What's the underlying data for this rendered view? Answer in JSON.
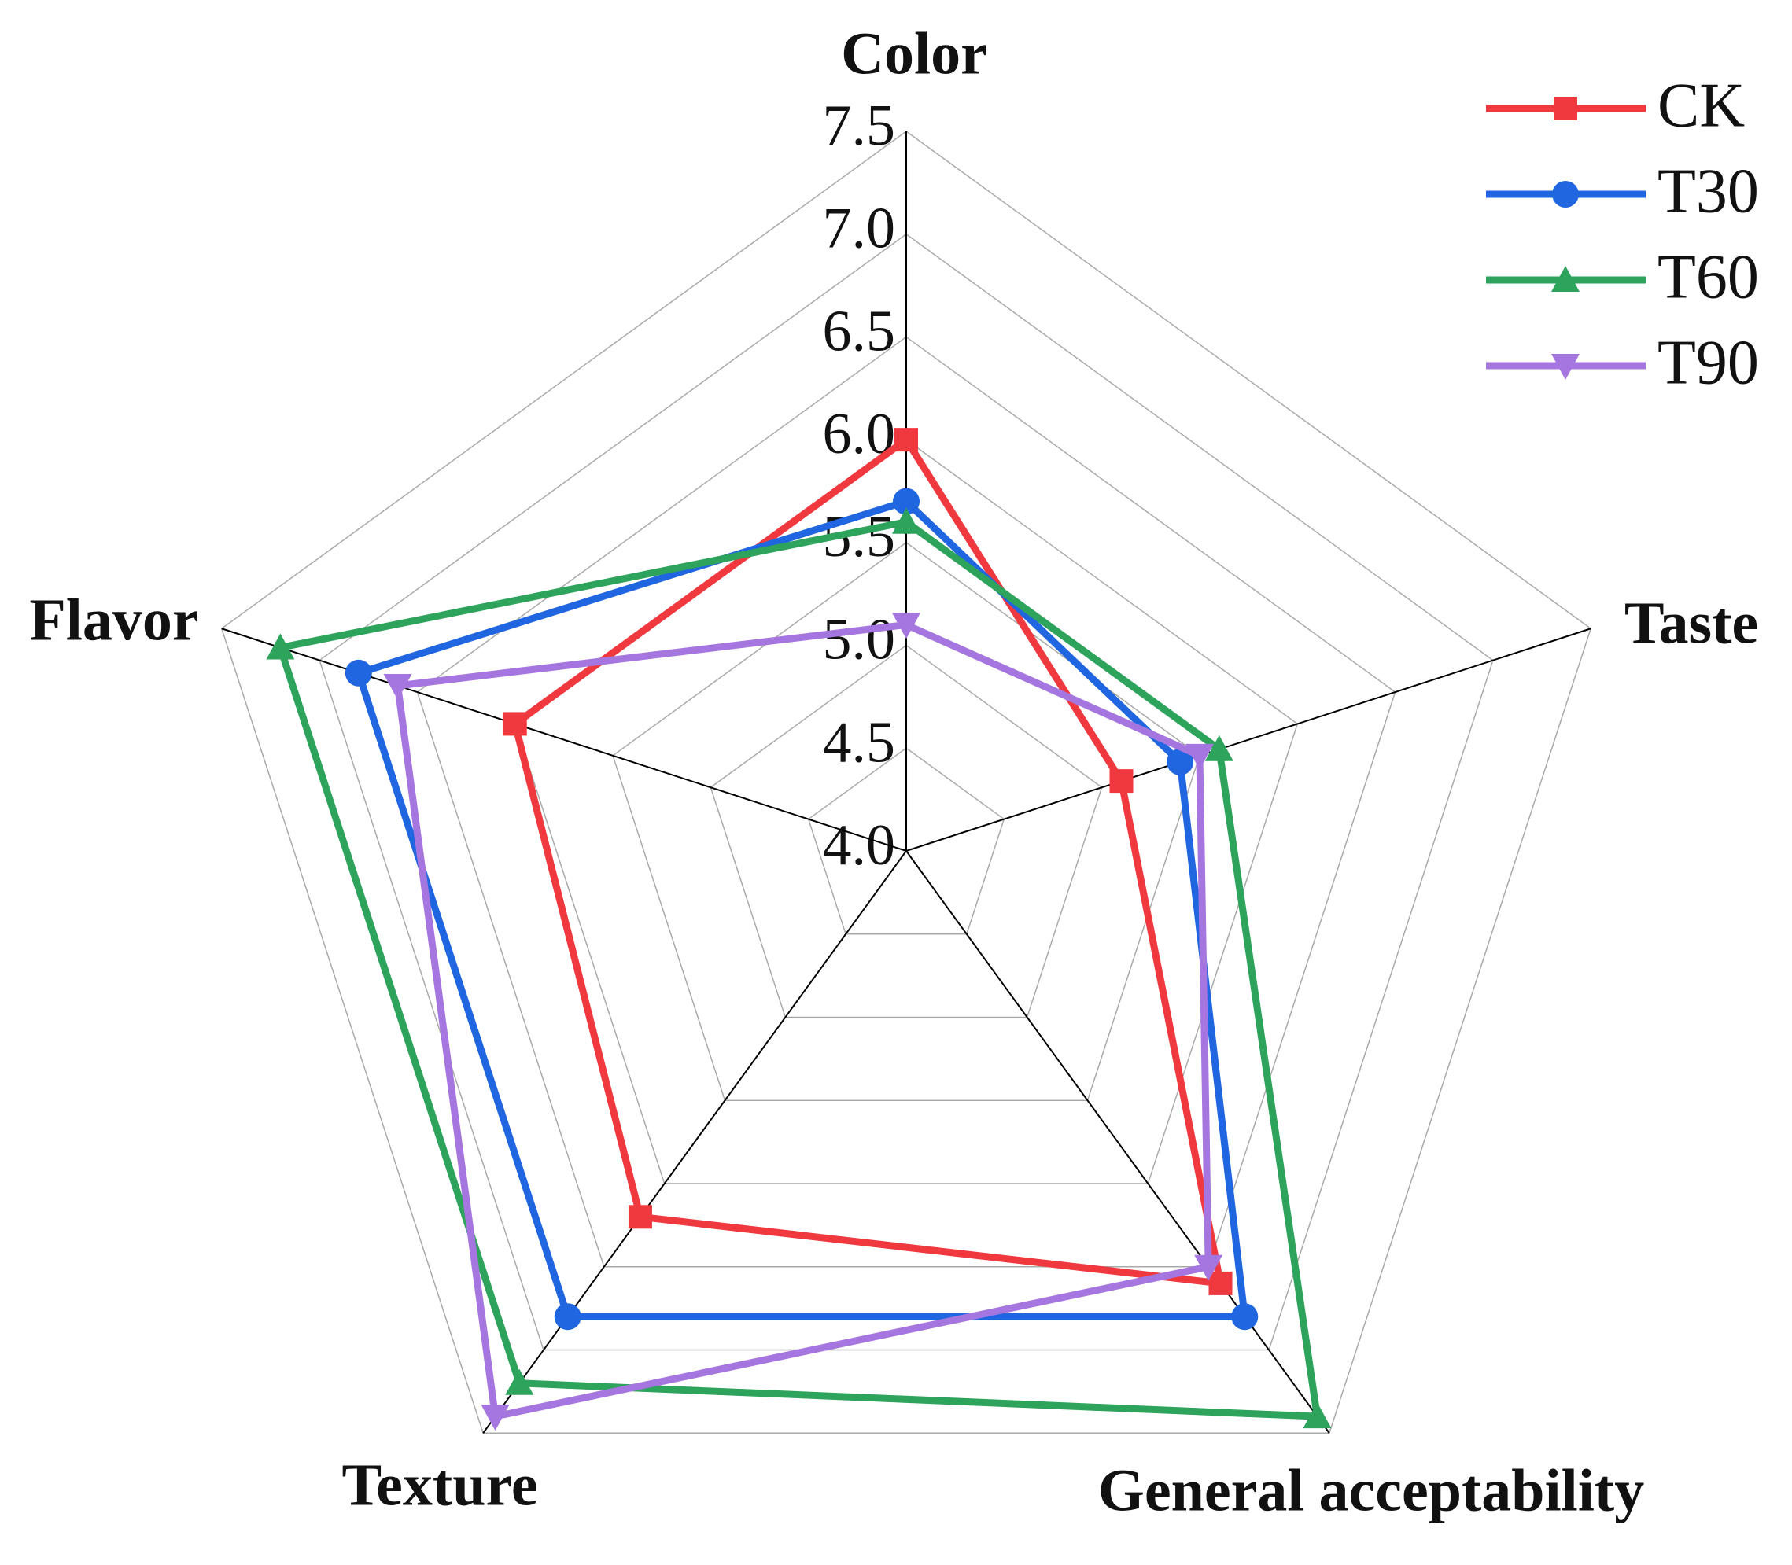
{
  "chart_data": {
    "type": "radar",
    "categories": [
      "Color",
      "Taste",
      "General acceptability",
      "Texture",
      "Flavor"
    ],
    "rlim": [
      4.0,
      7.5
    ],
    "rticks": [
      {
        "value": 4.0,
        "label": "4.0"
      },
      4.5,
      {
        "value": 5.0,
        "label": "5.0"
      },
      5.5,
      {
        "value": 6.0,
        "label": "6.0"
      },
      6.5,
      {
        "value": 7.0,
        "label": "7.0"
      },
      7.5
    ],
    "grid": true,
    "legend": "upper right",
    "series": [
      {
        "name": "CK",
        "color": "#f0383f",
        "marker": "square",
        "values": [
          6.0,
          5.1,
          6.6,
          6.2,
          6.0
        ]
      },
      {
        "name": "T30",
        "color": "#1f66e0",
        "marker": "circle",
        "values": [
          5.7,
          5.4,
          6.8,
          6.8,
          6.8
        ]
      },
      {
        "name": "T60",
        "color": "#2ea35c",
        "marker": "triangle-up",
        "values": [
          5.6,
          5.6,
          7.4,
          7.2,
          7.2
        ]
      },
      {
        "name": "T90",
        "color": "#a676e0",
        "marker": "triangle-down",
        "values": [
          5.1,
          5.5,
          6.5,
          7.4,
          6.6
        ]
      }
    ]
  }
}
